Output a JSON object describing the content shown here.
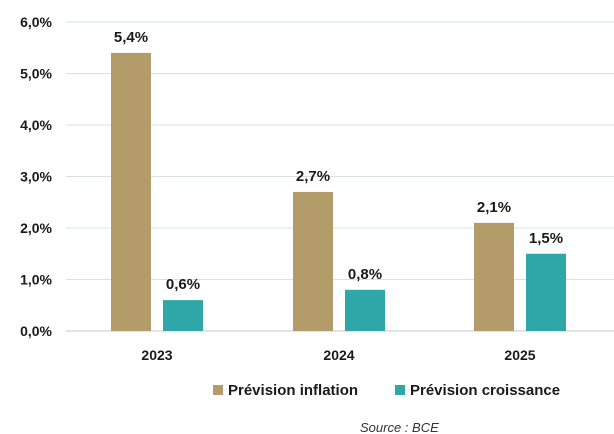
{
  "chart_data": {
    "type": "bar",
    "categories": [
      "2023",
      "2024",
      "2025"
    ],
    "series": [
      {
        "name": "Prévision inflation",
        "values": [
          5.4,
          2.7,
          2.1
        ],
        "labels": [
          "5,4%",
          "2,7%",
          "2,1%"
        ],
        "color": "#b39c6a"
      },
      {
        "name": "Prévision croissance",
        "values": [
          0.6,
          0.8,
          1.5
        ],
        "labels": [
          "0,6%",
          "0,8%",
          "1,5%"
        ],
        "color": "#2fa7a8"
      }
    ],
    "ylim": [
      0,
      6
    ],
    "yticks": [
      0,
      1,
      2,
      3,
      4,
      5,
      6
    ],
    "ytick_labels": [
      "0,0%",
      "1,0%",
      "2,0%",
      "3,0%",
      "4,0%",
      "5,0%",
      "6,0%"
    ],
    "grid": true,
    "legend_position": "bottom-right",
    "source": "Source : BCE"
  }
}
